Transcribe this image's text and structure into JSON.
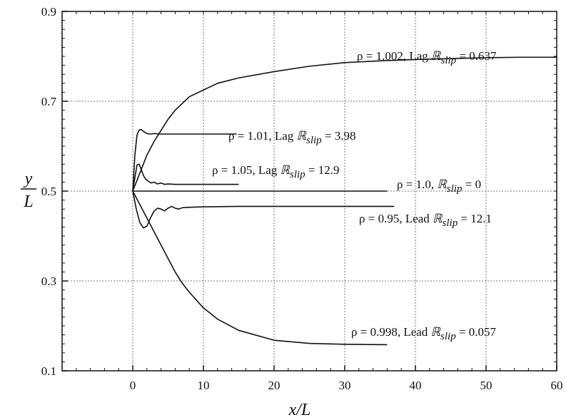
{
  "chart_data": {
    "type": "line",
    "xlabel": "x/L",
    "ylabel_num": "y",
    "ylabel_den": "L",
    "xlim": [
      -10,
      60
    ],
    "ylim": [
      0.1,
      0.9
    ],
    "xticks": [
      0,
      10,
      20,
      30,
      40,
      50,
      60
    ],
    "yticks": [
      0.1,
      0.3,
      0.5,
      0.7,
      0.9
    ],
    "grid": true,
    "series": [
      {
        "name": "ρ = 1.002, Lag ℝslip = 0.637",
        "label_parts": [
          "ρ = 1.002, Lag ",
          "ℝ",
          "slip",
          " = 0.637"
        ],
        "x": [
          0,
          1,
          2,
          3,
          4,
          5,
          6,
          8,
          10,
          12,
          15,
          20,
          25,
          30,
          35,
          40,
          45,
          50,
          55,
          60
        ],
        "y": [
          0.5,
          0.54,
          0.58,
          0.61,
          0.635,
          0.66,
          0.68,
          0.71,
          0.725,
          0.74,
          0.752,
          0.766,
          0.778,
          0.786,
          0.79,
          0.793,
          0.795,
          0.797,
          0.798,
          0.798
        ]
      },
      {
        "name": "ρ = 1.01, Lag ℝslip = 3.98",
        "label_parts": [
          "ρ = 1.01, Lag ",
          "ℝ",
          "slip",
          " = 3.98"
        ],
        "x": [
          0,
          0.3,
          0.6,
          0.9,
          1.2,
          1.6,
          2.0,
          2.5,
          3,
          4,
          5,
          8,
          10,
          12,
          14.7
        ],
        "y": [
          0.5,
          0.58,
          0.625,
          0.636,
          0.637,
          0.632,
          0.628,
          0.627,
          0.628,
          0.627,
          0.627,
          0.627,
          0.627,
          0.627,
          0.627
        ]
      },
      {
        "name": "ρ = 1.05, Lag ℝslip = 12.9",
        "label_parts": [
          "ρ = 1.05, Lag ",
          "ℝ",
          "slip",
          " = 12.9"
        ],
        "x": [
          0,
          0.3,
          0.6,
          0.9,
          1.2,
          1.5,
          1.8,
          2.2,
          2.6,
          3.0,
          3.5,
          4.0,
          4.5,
          5,
          6,
          8,
          10,
          12,
          15
        ],
        "y": [
          0.5,
          0.53,
          0.558,
          0.56,
          0.548,
          0.535,
          0.527,
          0.522,
          0.518,
          0.52,
          0.516,
          0.518,
          0.515,
          0.516,
          0.515,
          0.515,
          0.515,
          0.515,
          0.515
        ]
      },
      {
        "name": "ρ = 1.0, ℝslip = 0",
        "label_parts": [
          "ρ = 1.0, ",
          "ℝ",
          "slip",
          " = 0"
        ],
        "x": [
          0,
          36
        ],
        "y": [
          0.5,
          0.5
        ]
      },
      {
        "name": "ρ = 0.95, Lead ℝslip = 12.1",
        "label_parts": [
          "ρ = 0.95, Lead ",
          "ℝ",
          "slip",
          " = 12.1"
        ],
        "x": [
          0,
          0.5,
          1.0,
          1.5,
          2.0,
          2.5,
          3.0,
          3.5,
          4.0,
          4.5,
          5.0,
          5.5,
          6.0,
          6.5,
          7,
          8,
          10,
          15,
          20,
          25,
          30,
          37
        ],
        "y": [
          0.5,
          0.46,
          0.43,
          0.418,
          0.422,
          0.44,
          0.455,
          0.462,
          0.46,
          0.456,
          0.462,
          0.466,
          0.462,
          0.46,
          0.463,
          0.464,
          0.465,
          0.466,
          0.466,
          0.466,
          0.466,
          0.466
        ]
      },
      {
        "name": "ρ = 0.998, Lead ℝslip = 0.057",
        "label_parts": [
          "ρ = 0.998, Lead ",
          "ℝ",
          "slip",
          " = 0.057"
        ],
        "x": [
          0,
          1,
          2,
          3,
          4,
          5,
          6,
          7,
          8,
          10,
          12,
          15,
          20,
          25,
          30,
          36
        ],
        "y": [
          0.5,
          0.47,
          0.44,
          0.41,
          0.38,
          0.35,
          0.32,
          0.295,
          0.275,
          0.24,
          0.215,
          0.19,
          0.168,
          0.161,
          0.159,
          0.158
        ]
      }
    ]
  }
}
